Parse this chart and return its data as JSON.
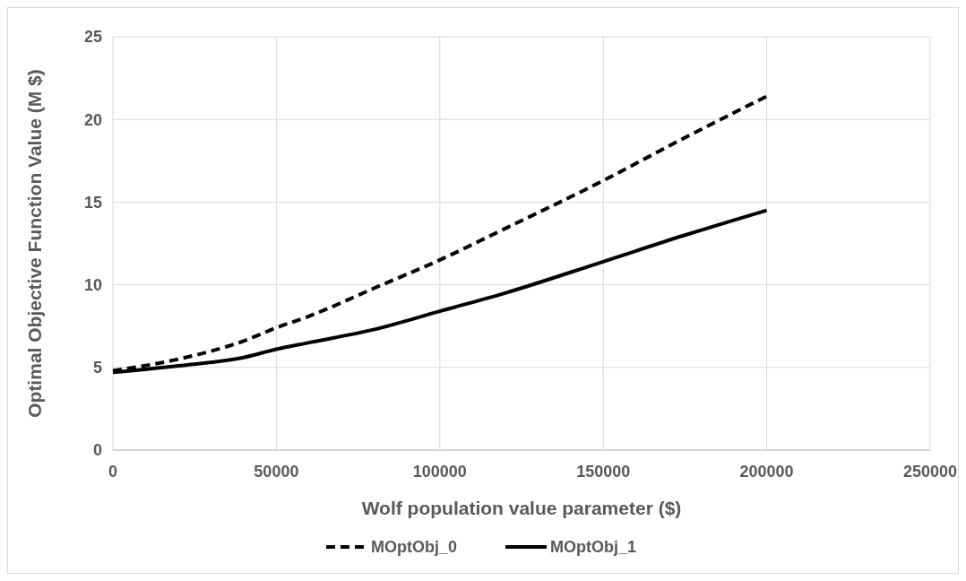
{
  "chart_data": {
    "type": "line",
    "xlabel": "Wolf population value parameter ($)",
    "ylabel": "Optimal Objective Function Value (M $)",
    "xlim": [
      0,
      250000
    ],
    "xticks": [
      0,
      50000,
      100000,
      150000,
      200000,
      250000
    ],
    "ylim": [
      0,
      25
    ],
    "yticks": [
      0,
      5,
      10,
      15,
      20,
      25
    ],
    "grid": true,
    "legend": "bottom",
    "series": [
      {
        "name": "MOptObj_0",
        "color": "#000000",
        "line_style": "dashed",
        "x": [
          0,
          20000,
          40000,
          50000,
          60000,
          80000,
          100000,
          120000,
          150000,
          175000,
          200000
        ],
        "values": [
          4.8,
          5.5,
          6.6,
          7.4,
          8.1,
          9.8,
          11.5,
          13.4,
          16.3,
          18.9,
          21.4
        ]
      },
      {
        "name": "MOptObj_1",
        "color": "#000000",
        "line_style": "solid",
        "x": [
          0,
          20000,
          40000,
          50000,
          60000,
          80000,
          100000,
          120000,
          150000,
          175000,
          200000
        ],
        "values": [
          4.7,
          5.1,
          5.6,
          6.1,
          6.5,
          7.3,
          8.4,
          9.5,
          11.4,
          13.0,
          14.5
        ]
      }
    ]
  }
}
